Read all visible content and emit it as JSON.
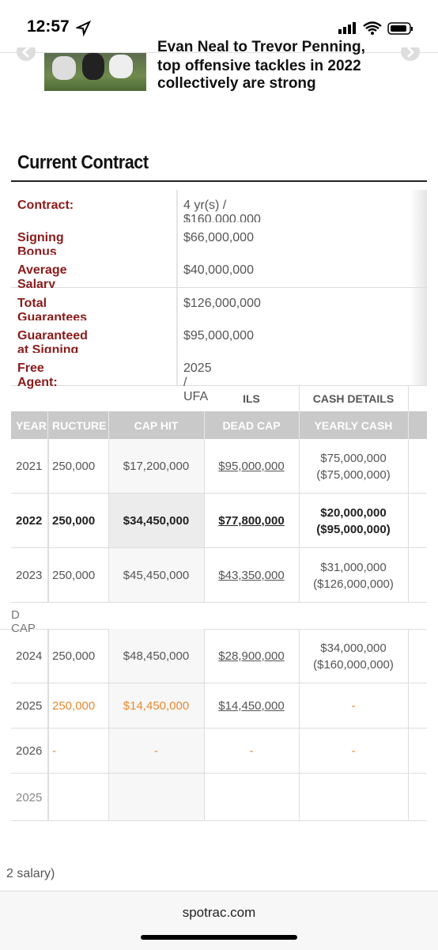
{
  "status_bar": {
    "time": "12:57"
  },
  "article": {
    "title_lines": [
      "Evan Neal to Trevor Penning,",
      "top offensive tackles in 2022",
      "collectively are strong"
    ]
  },
  "section_title": "Current Contract",
  "contract": [
    {
      "label": "Contract:",
      "value": "4 yr(s) / $160,000,000"
    },
    {
      "label": "Signing Bonus",
      "value": "$66,000,000"
    },
    {
      "label": "Average Salary",
      "value": "$40,000,000"
    },
    {
      "label": "Total Guarantees",
      "value": "$126,000,000"
    },
    {
      "label": "Guaranteed at Signing",
      "value": "$95,000,000"
    },
    {
      "label": "Free Agent:",
      "value": "2025 / UFA"
    }
  ],
  "table": {
    "group_headers": [
      "ILS",
      "CASH DETAILS"
    ],
    "headers": [
      "YEAR",
      "RUCTURE",
      "CAP HIT",
      "DEAD CAP",
      "YEARLY CASH"
    ],
    "rows": [
      [
        "2021",
        "250,000",
        "$17,200,000",
        "$95,000,000",
        [
          "$75,000,000",
          "($75,000,000)"
        ]
      ],
      [
        "2022",
        "250,000",
        "$34,450,000",
        "$77,800,000",
        [
          "$20,000,000",
          "($95,000,000)"
        ]
      ],
      [
        "2023",
        "250,000",
        "$45,450,000",
        "$43,350,000",
        [
          "$31,000,000",
          "($126,000,000)"
        ]
      ],
      [
        "2024",
        "250,000",
        "$48,450,000",
        "$28,900,000",
        [
          "$34,000,000",
          "($160,000,000)"
        ]
      ],
      [
        "2025",
        "250,000",
        "$14,450,000",
        "$14,450,000",
        [
          "-"
        ]
      ],
      [
        "2026",
        "-",
        "-",
        "-",
        [
          "-"
        ]
      ],
      [
        "2025"
      ]
    ],
    "divider": "D CAP"
  },
  "footnote": "2 salary)",
  "footer": {
    "domain": "spotrac.com"
  }
}
